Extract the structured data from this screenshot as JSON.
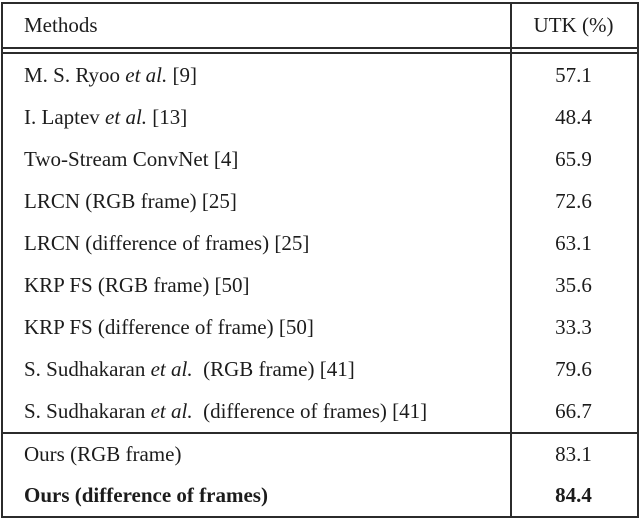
{
  "colors": {
    "border": "#2b2b2b",
    "text": "#1c1c1c",
    "background": "#ffffff"
  },
  "table": {
    "header": {
      "methods_label": "Methods",
      "metric_label": "UTK (%)"
    },
    "sections": [
      {
        "name": "prior-methods",
        "rows": [
          {
            "method": [
              {
                "t": "M. S. Ryoo "
              },
              {
                "t": "et al.",
                "i": true
              },
              {
                "t": " [9]"
              }
            ],
            "value": "57.1",
            "bold": false
          },
          {
            "method": [
              {
                "t": "I. Laptev "
              },
              {
                "t": "et al.",
                "i": true
              },
              {
                "t": " [13]"
              }
            ],
            "value": "48.4",
            "bold": false
          },
          {
            "method": [
              {
                "t": "Two-Stream ConvNet [4]"
              }
            ],
            "value": "65.9",
            "bold": false
          },
          {
            "method": [
              {
                "t": "LRCN (RGB frame) [25]"
              }
            ],
            "value": "72.6",
            "bold": false
          },
          {
            "method": [
              {
                "t": "LRCN (difference of frames) [25]"
              }
            ],
            "value": "63.1",
            "bold": false
          },
          {
            "method": [
              {
                "t": "KRP FS (RGB frame) [50]"
              }
            ],
            "value": "35.6",
            "bold": false
          },
          {
            "method": [
              {
                "t": "KRP FS (difference of frame) [50]"
              }
            ],
            "value": "33.3",
            "bold": false
          },
          {
            "method": [
              {
                "t": "S. Sudhakaran "
              },
              {
                "t": "et al.",
                "i": true
              },
              {
                "t": "  (RGB frame) [41]"
              }
            ],
            "value": "79.6",
            "bold": false
          },
          {
            "method": [
              {
                "t": "S. Sudhakaran "
              },
              {
                "t": "et al.",
                "i": true
              },
              {
                "t": "  (difference of frames) [41]"
              }
            ],
            "value": "66.7",
            "bold": false
          }
        ]
      },
      {
        "name": "ours",
        "rows": [
          {
            "method": [
              {
                "t": "Ours (RGB frame)"
              }
            ],
            "value": "83.1",
            "bold": false
          },
          {
            "method": [
              {
                "t": "Ours (difference of frames)"
              }
            ],
            "value": "84.4",
            "bold": true
          }
        ]
      }
    ]
  }
}
